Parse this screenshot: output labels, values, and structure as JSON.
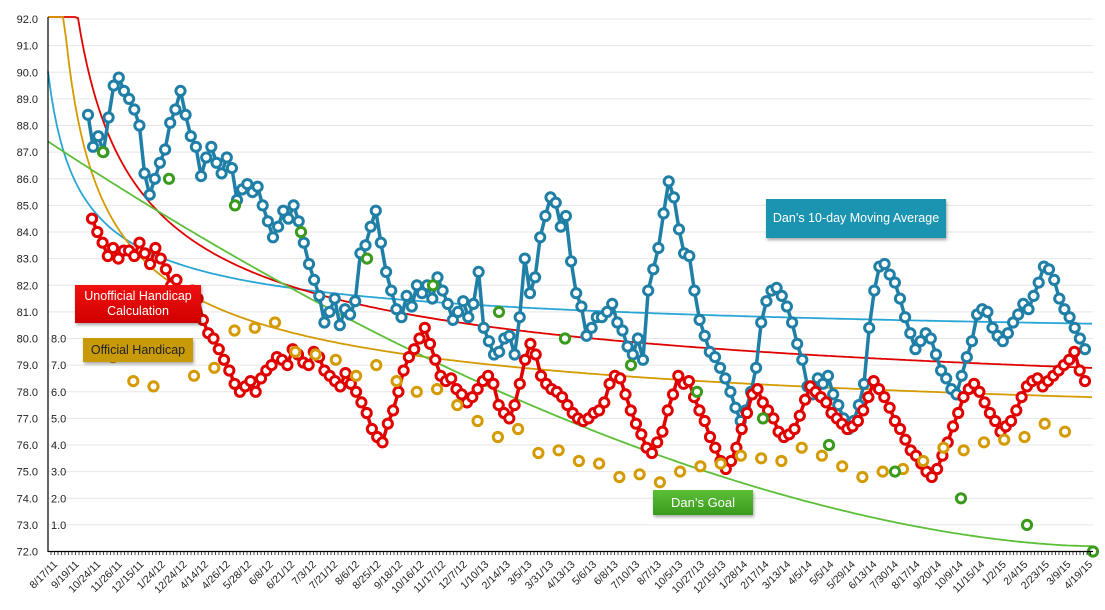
{
  "chart_data": {
    "type": "line",
    "title": "",
    "xlabel": "",
    "ylabel": "",
    "ylim": [
      72.0,
      92.0
    ],
    "y_ticks": [
      "72.0",
      "73.0",
      "74.0",
      "75.0",
      "76.0",
      "77.0",
      "78.0",
      "79.0",
      "80.0",
      "81.0",
      "82.0",
      "83.0",
      "84.0",
      "85.0",
      "86.0",
      "87.0",
      "88.0",
      "89.0",
      "90.0",
      "91.0",
      "92.0"
    ],
    "secondary_y_ticks": [
      "1.0",
      "2.0",
      "3.0",
      "4.0",
      "5.0",
      "6.0",
      "7.0",
      "8.0"
    ],
    "x_tick_labels": [
      "8/17/11",
      "9/19/11",
      "10/24/11",
      "11/26/11",
      "12/15/11",
      "1/24/12",
      "12/24/12",
      "4/14/12",
      "4/26/12",
      "5/28/12",
      "6/8/12",
      "6/21/12",
      "7/3/12",
      "7/21/12",
      "8/6/12",
      "8/25/12",
      "9/18/12",
      "10/16/12",
      "11/17/12",
      "12/7/12",
      "1/10/13",
      "2/14/13",
      "3/5/13",
      "3/31/13",
      "4/13/13",
      "5/6/13",
      "6/8/13",
      "7/10/13",
      "8/7/13",
      "10/5/13",
      "10/27/13",
      "12/15/13",
      "1/28/14",
      "2/17/14",
      "3/13/14",
      "4/5/14",
      "5/5/14",
      "5/29/14",
      "6/13/14",
      "7/30/14",
      "8/17/14",
      "9/20/14",
      "10/9/14",
      "11/15/14",
      "1/2/15",
      "2/4/15",
      "2/23/15",
      "3/9/15",
      "4/19/15"
    ],
    "grid": true,
    "series": [
      {
        "name": "Dan's 10-day Moving Average",
        "color": "#1f7fa6",
        "values": [
          88.4,
          87.2,
          87.6,
          87.0,
          88.3,
          89.5,
          89.8,
          89.3,
          89.0,
          88.6,
          88.0,
          86.2,
          85.4,
          86.0,
          86.6,
          87.1,
          88.1,
          88.6,
          89.3,
          88.4,
          87.6,
          87.2,
          86.1,
          86.8,
          87.2,
          86.6,
          86.2,
          86.8,
          86.4,
          85.2,
          85.6,
          85.8,
          85.5,
          85.7,
          85.0,
          84.4,
          83.8,
          84.2,
          84.8,
          84.5,
          85.0,
          84.4,
          83.6,
          82.8,
          82.2,
          81.6,
          80.6,
          81.0,
          81.5,
          80.5,
          81.1,
          80.9,
          81.4,
          83.2,
          83.5,
          84.2,
          84.8,
          83.6,
          82.5,
          81.8,
          81.1,
          80.8,
          81.6,
          81.2,
          82.0,
          81.7,
          82.0,
          81.5,
          82.3,
          81.8,
          81.3,
          80.7,
          81.0,
          81.4,
          80.8,
          81.3,
          82.5,
          80.4,
          79.9,
          79.4,
          79.5,
          80.0,
          80.1,
          79.4,
          80.8,
          83.0,
          81.7,
          82.3,
          83.8,
          84.6,
          85.3,
          85.1,
          84.2,
          84.6,
          82.9,
          81.7,
          81.2,
          80.1,
          80.4,
          80.8,
          80.8,
          81.0,
          81.3,
          80.6,
          80.3,
          79.7,
          79.4,
          80.0,
          79.2,
          81.8,
          82.6,
          83.4,
          84.7,
          85.9,
          85.3,
          84.1,
          83.2,
          83.1,
          81.8,
          80.7,
          80.1,
          79.5,
          79.3,
          78.9,
          78.5,
          78.0,
          77.4,
          76.9,
          77.3,
          78.0,
          78.9,
          80.6,
          81.4,
          81.8,
          81.9,
          81.6,
          81.2,
          80.6,
          79.8,
          79.2,
          78.2,
          77.9,
          78.5,
          78.3,
          78.6,
          77.9,
          77.5,
          77.0,
          76.6,
          76.9,
          77.5,
          78.3,
          80.4,
          81.8,
          82.7,
          82.8,
          82.4,
          82.1,
          81.5,
          80.8,
          80.2,
          79.6,
          79.9,
          80.2,
          80.0,
          79.4,
          78.8,
          78.5,
          78.1,
          77.9,
          78.6,
          79.3,
          79.9,
          80.9,
          81.1,
          81.0,
          80.4,
          80.1,
          79.9,
          80.2,
          80.6,
          80.9,
          81.3,
          81.1,
          81.6,
          82.1,
          82.7,
          82.6,
          82.2,
          81.5,
          81.1,
          80.8,
          80.4,
          80.0,
          79.6
        ]
      },
      {
        "name": "Unofficial Handicap Calculation",
        "color": "#e00000",
        "values": [
          84.5,
          84.0,
          83.6,
          83.1,
          83.4,
          83.0,
          83.3,
          83.3,
          83.1,
          83.6,
          83.2,
          82.8,
          83.4,
          83.0,
          82.6,
          82.0,
          82.2,
          81.6,
          81.2,
          81.8,
          81.5,
          80.7,
          80.2,
          80.0,
          79.6,
          79.2,
          78.8,
          78.3,
          78.0,
          78.2,
          78.4,
          78.0,
          78.5,
          78.8,
          79.0,
          79.3,
          79.2,
          79.0,
          79.6,
          79.4,
          79.1,
          79.0,
          79.5,
          79.3,
          78.8,
          78.6,
          78.4,
          78.2,
          78.7,
          78.3,
          78.0,
          77.6,
          77.2,
          76.6,
          76.3,
          76.1,
          76.8,
          77.3,
          78.0,
          78.8,
          79.3,
          79.6,
          80.0,
          80.4,
          79.8,
          79.2,
          78.6,
          78.4,
          78.5,
          78.1,
          77.9,
          77.6,
          77.8,
          78.1,
          78.4,
          78.6,
          78.3,
          77.5,
          77.2,
          77.0,
          77.5,
          78.3,
          79.2,
          79.8,
          79.4,
          78.6,
          78.3,
          78.1,
          78.0,
          77.8,
          77.5,
          77.2,
          77.0,
          76.9,
          77.0,
          77.2,
          77.3,
          77.6,
          78.3,
          78.6,
          78.5,
          77.9,
          77.3,
          76.8,
          76.4,
          75.9,
          75.7,
          76.1,
          76.5,
          77.3,
          77.9,
          78.6,
          78.3,
          78.4,
          77.8,
          77.3,
          76.9,
          76.3,
          75.9,
          75.4,
          75.1,
          75.4,
          75.9,
          76.6,
          77.2,
          77.9,
          78.1,
          77.6,
          77.3,
          77.0,
          76.5,
          76.3,
          76.4,
          76.6,
          77.1,
          77.7,
          78.2,
          78.0,
          77.8,
          77.6,
          77.2,
          77.0,
          76.8,
          76.6,
          76.7,
          76.9,
          77.3,
          77.8,
          78.4,
          78.1,
          77.8,
          77.4,
          76.9,
          76.6,
          76.2,
          75.8,
          75.6,
          75.3,
          75.0,
          74.8,
          75.1,
          75.6,
          76.1,
          76.7,
          77.2,
          77.8,
          78.1,
          78.3,
          78.0,
          77.6,
          77.2,
          76.9,
          76.5,
          76.7,
          76.9,
          77.3,
          77.8,
          78.2,
          78.4,
          78.5,
          78.2,
          78.4,
          78.6,
          78.8,
          79.0,
          79.2,
          79.5,
          78.8,
          78.4
        ]
      },
      {
        "name": "Official Handicap",
        "color": "#d49a00",
        "values": [
          79.3,
          78.4,
          78.2,
          79.4,
          78.6,
          78.9,
          80.3,
          80.4,
          80.6,
          79.5,
          79.4,
          79.2,
          78.6,
          79.0,
          78.4,
          78.0,
          78.1,
          77.5,
          76.9,
          76.3,
          76.6,
          75.7,
          75.8,
          75.4,
          75.3,
          74.8,
          74.9,
          74.6,
          75.0,
          75.2,
          75.3,
          75.6,
          75.5,
          75.4,
          75.9,
          75.6,
          75.2,
          74.8,
          75.0,
          75.1,
          75.4,
          75.9,
          75.8,
          76.1,
          76.2,
          76.3,
          76.8,
          76.5
        ]
      },
      {
        "name": "Dan's Goal",
        "color": "#3a9a1c",
        "values": [
          87.0,
          86.0,
          85.0,
          84.0,
          83.0,
          82.0,
          81.0,
          80.0,
          79.0,
          78.0,
          77.0,
          76.0,
          75.0,
          74.0,
          73.0,
          72.0
        ]
      }
    ],
    "trendlines": [
      {
        "name": "Moving average trend",
        "color": "#29a6d6"
      },
      {
        "name": "Unofficial trend",
        "color": "#e00000"
      },
      {
        "name": "Official trend",
        "color": "#d49a00"
      },
      {
        "name": "Goal trend",
        "color": "#5cbf38"
      }
    ],
    "annotations": {
      "unofficial": "Unofficial Handicap Calculation",
      "official": "Official Handicap",
      "moving": "Dan’s 10-day Moving Average",
      "goal": "Dan’s Goal"
    }
  }
}
